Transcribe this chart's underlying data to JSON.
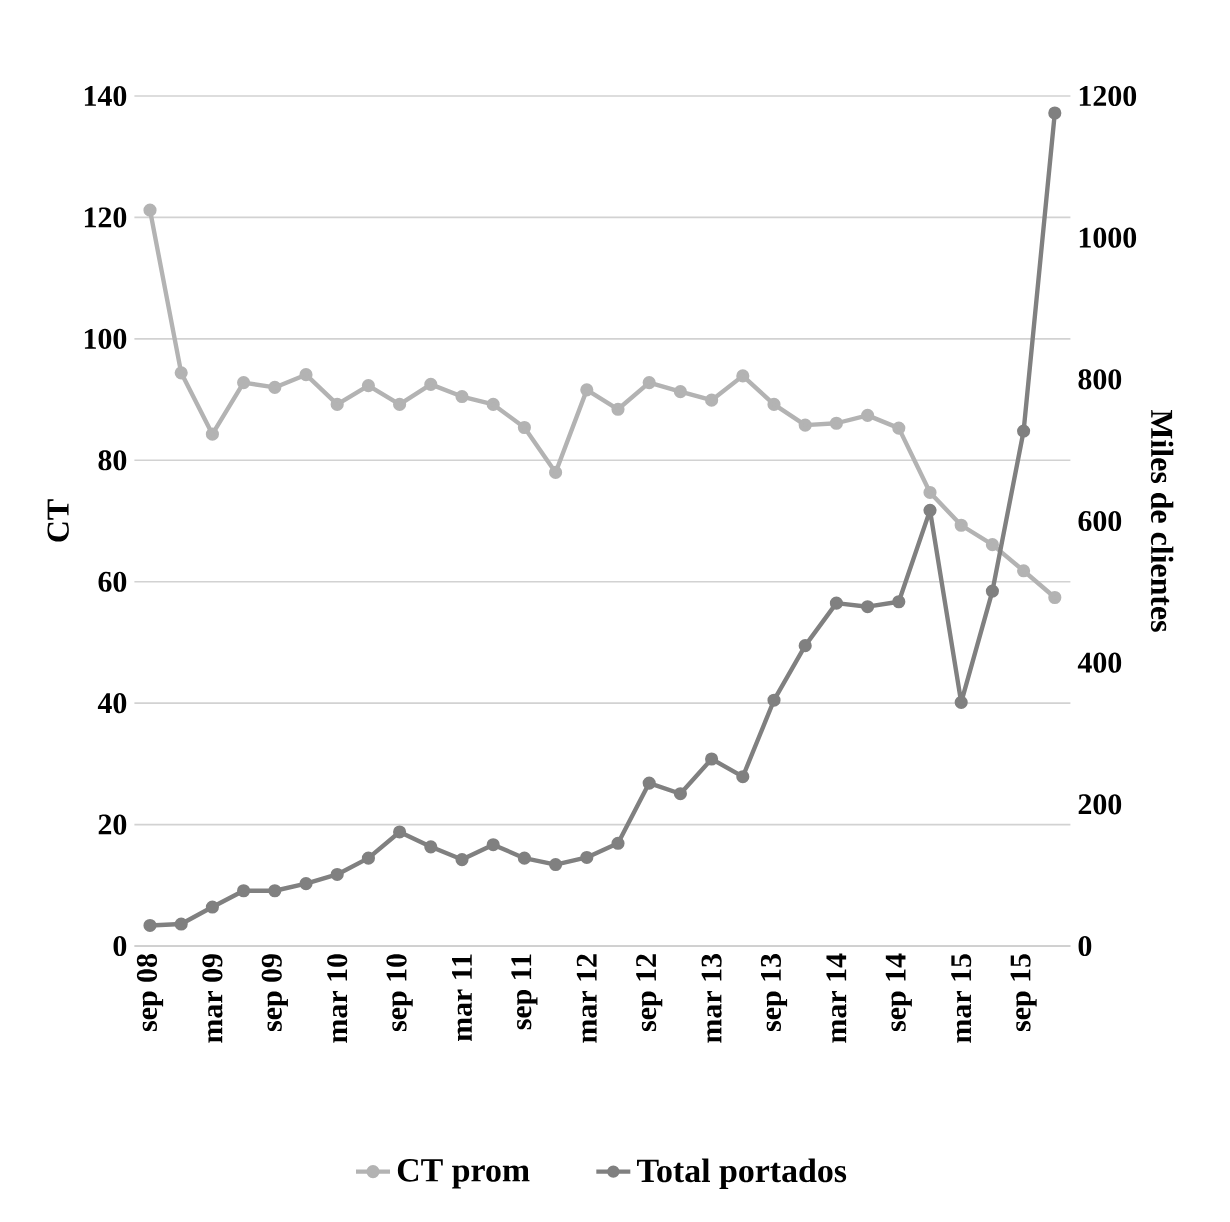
{
  "chart_data": {
    "type": "line",
    "xlabel": null,
    "ylabel": "CT",
    "y2label": "Miles de clientes",
    "categories": [
      "sep 08",
      null,
      "mar 09",
      null,
      "sep 09",
      null,
      "mar 10",
      null,
      "sep 10",
      null,
      "mar 11",
      null,
      "sep 11",
      null,
      "mar 12",
      null,
      "sep 12",
      null,
      "mar 13",
      null,
      "sep 13",
      null,
      "mar 14",
      null,
      "sep 14",
      null,
      "mar 15",
      null,
      "sep 15",
      null
    ],
    "series": [
      {
        "name": "CT prom",
        "color": "#b3b3b3",
        "values": [
          121.2,
          94.4,
          84.3,
          92.8,
          92,
          94.1,
          89.2,
          92.3,
          89.2,
          92.5,
          90.5,
          89.2,
          85.4,
          78,
          91.6,
          88.4,
          92.8,
          91.3,
          89.9,
          93.9,
          89.2,
          85.8,
          86.1,
          87.4,
          85.3,
          74.7,
          69.3,
          66.1,
          61.8,
          57.4
        ]
      },
      {
        "name": "Total portados",
        "color": "#808080",
        "axis": "y2",
        "values": [
          29,
          31,
          55,
          78,
          78,
          88,
          101,
          124,
          161,
          140,
          122,
          143,
          124,
          115,
          125,
          145,
          230,
          215,
          264,
          239,
          347,
          424,
          484,
          479,
          486,
          615,
          344,
          501,
          727,
          1176
        ]
      }
    ],
    "ylim": [
      0,
      140
    ],
    "yticks": [
      0,
      20,
      40,
      60,
      80,
      100,
      120,
      140
    ],
    "y2lim": [
      0,
      1200
    ],
    "y2ticks": [
      0,
      200,
      400,
      600,
      800,
      1000,
      1200
    ],
    "grid": "y",
    "legend": "bottom",
    "marker": "circle",
    "line_style": "solid"
  }
}
